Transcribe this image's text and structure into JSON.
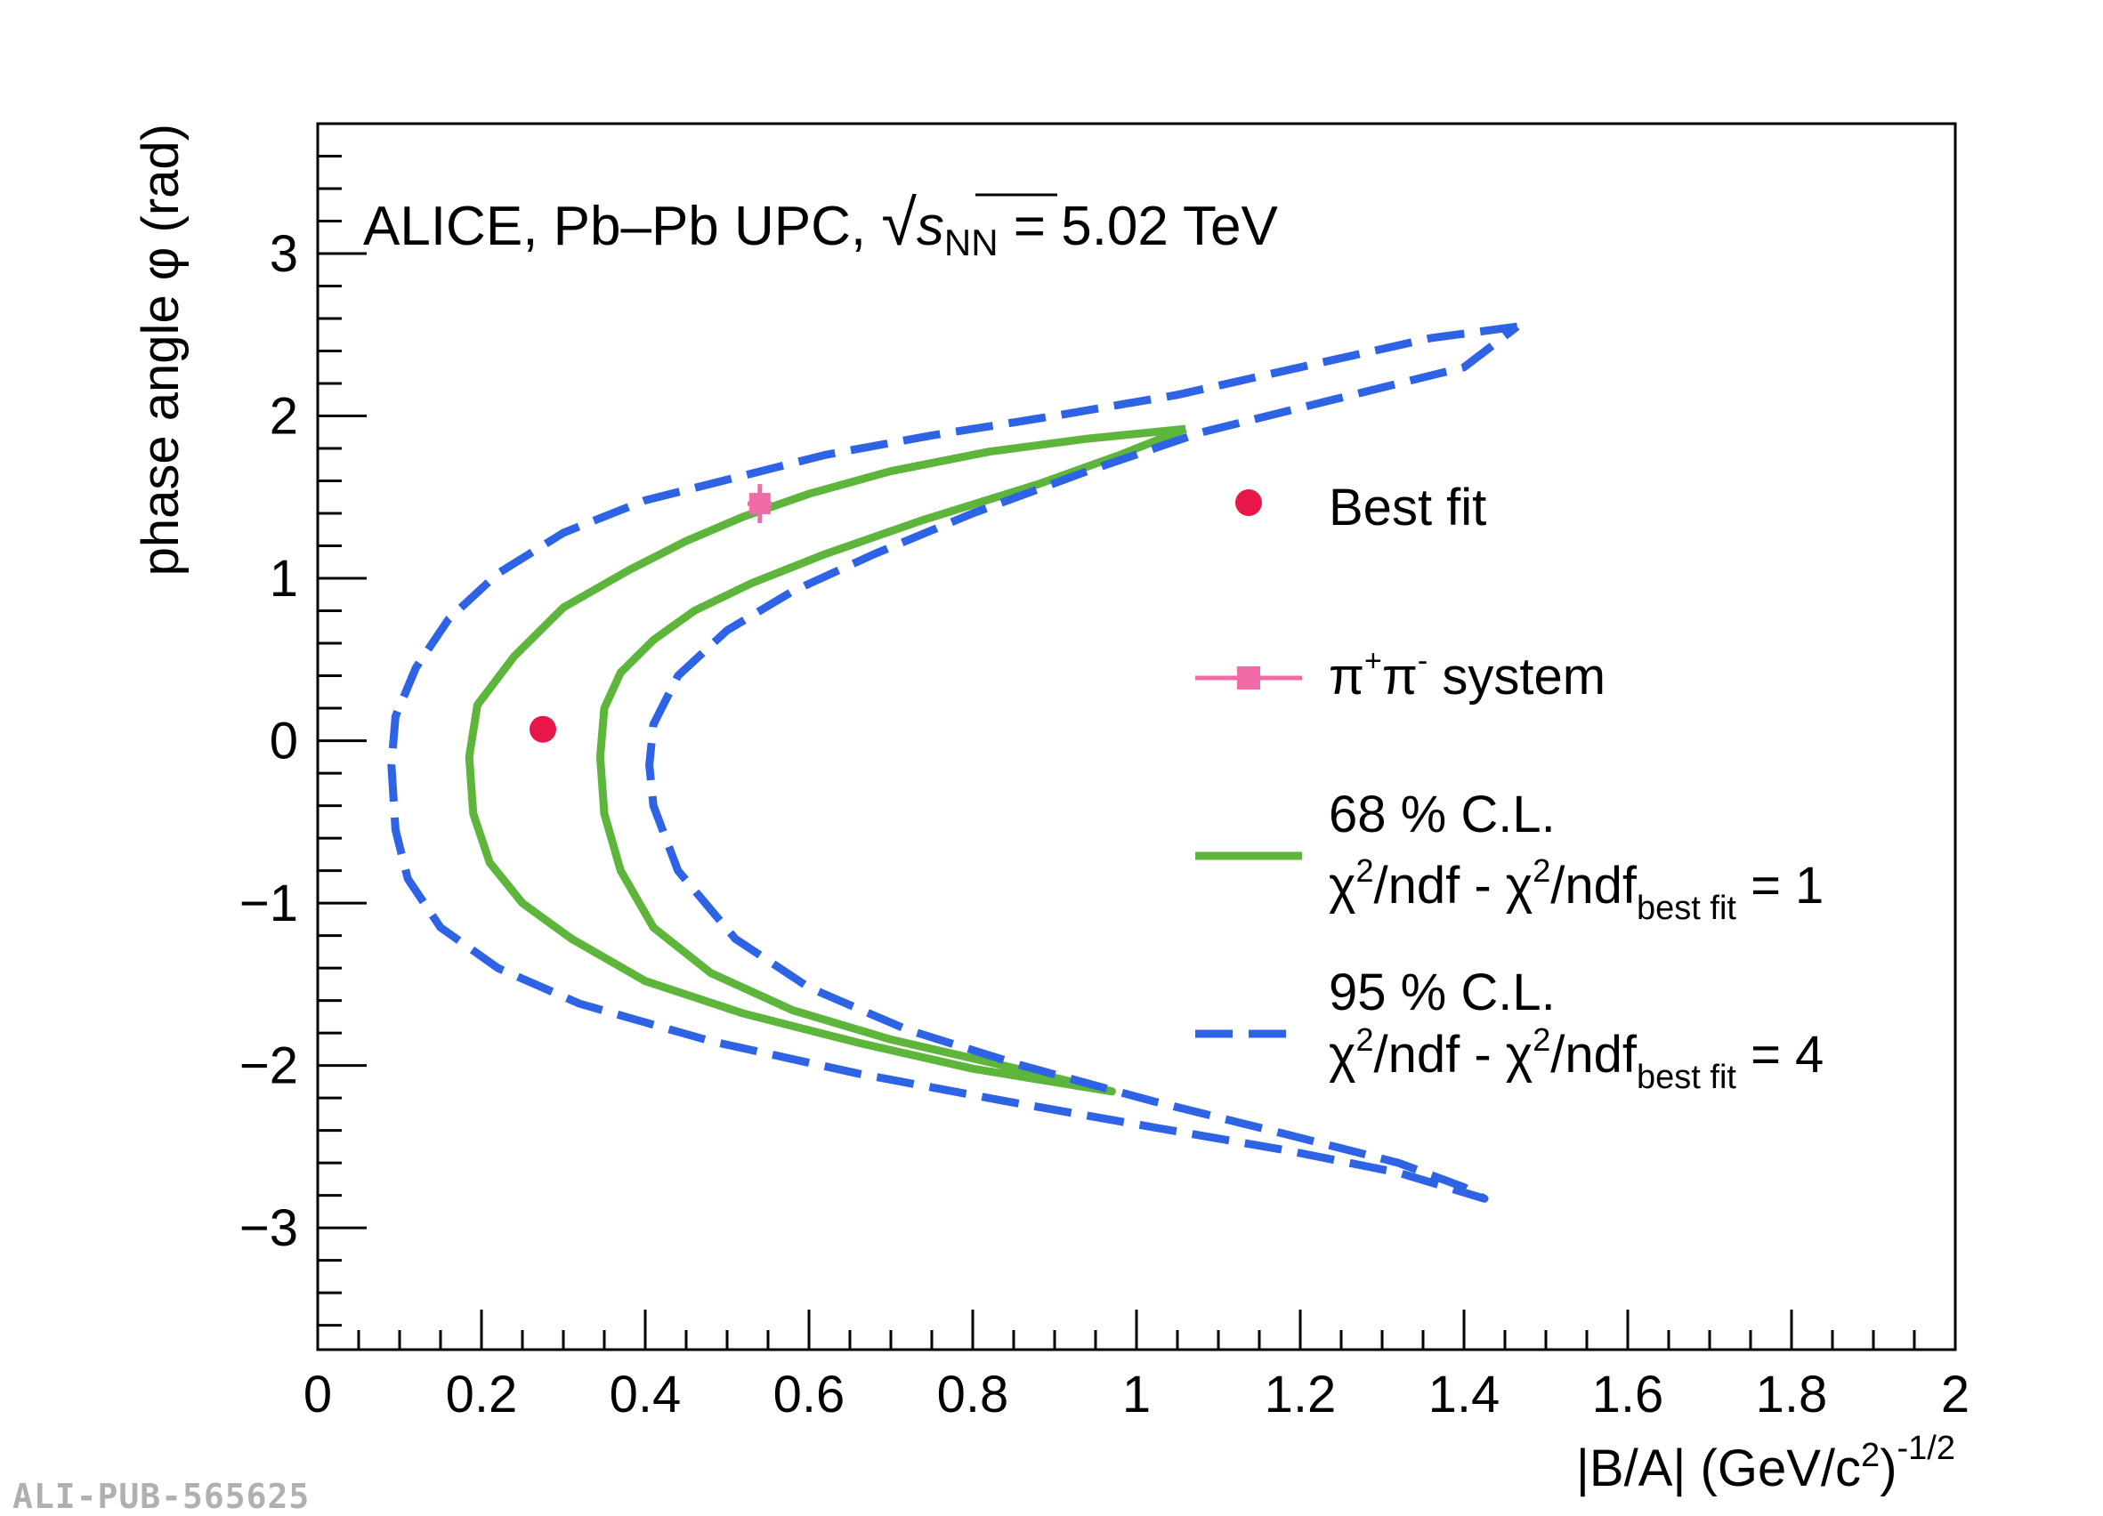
{
  "chart_data": {
    "type": "line",
    "annotation": {
      "prefix": "ALICE, Pb–Pb UPC, ",
      "sqrt_symbol": "√",
      "s": "s",
      "sub": "NN",
      "suffix": " = 5.02 TeV"
    },
    "xlabel": {
      "main": "|B/A| (GeV/c",
      "sup2": "2",
      "close": ")",
      "sup": "-1/2"
    },
    "ylabel": "phase angle φ (rad)",
    "xlim": [
      0,
      2
    ],
    "ylim": [
      -3.75,
      3.8
    ],
    "x_ticks": [
      0,
      0.2,
      0.4,
      0.6,
      0.8,
      1,
      1.2,
      1.4,
      1.6,
      1.8,
      2
    ],
    "x_tick_labels": [
      "0",
      "0.2",
      "0.4",
      "0.6",
      "0.8",
      "1",
      "1.2",
      "1.4",
      "1.6",
      "1.8",
      "2"
    ],
    "y_ticks": [
      -3,
      -2,
      -1,
      0,
      1,
      2,
      3
    ],
    "y_tick_labels": [
      "−3",
      "−2",
      "−1",
      "0",
      "1",
      "2",
      "3"
    ],
    "colors": {
      "best_fit": "#e8174a",
      "pipi": "#f06aa8",
      "cl68": "#5db53c",
      "cl95": "#2f63e6"
    },
    "series": [
      {
        "name": "Best fit",
        "kind": "point",
        "points": [
          [
            0.275,
            0.07
          ]
        ]
      },
      {
        "name": "π⁺π⁻ system",
        "kind": "point_with_errors",
        "points": [
          [
            0.54,
            1.46
          ]
        ],
        "xerr": 0.015,
        "yerr": 0.12
      },
      {
        "name": "68 % C.L. χ²/ndf - χ²/ndf best fit = 1",
        "kind": "contour",
        "style": "solid",
        "points": [
          [
            1.06,
            1.92
          ],
          [
            0.94,
            1.86
          ],
          [
            0.82,
            1.78
          ],
          [
            0.7,
            1.66
          ],
          [
            0.6,
            1.52
          ],
          [
            0.52,
            1.38
          ],
          [
            0.45,
            1.23
          ],
          [
            0.38,
            1.05
          ],
          [
            0.3,
            0.82
          ],
          [
            0.24,
            0.52
          ],
          [
            0.195,
            0.22
          ],
          [
            0.185,
            -0.1
          ],
          [
            0.19,
            -0.45
          ],
          [
            0.21,
            -0.75
          ],
          [
            0.25,
            -1.0
          ],
          [
            0.31,
            -1.22
          ],
          [
            0.4,
            -1.48
          ],
          [
            0.52,
            -1.68
          ],
          [
            0.66,
            -1.86
          ],
          [
            0.8,
            -2.02
          ],
          [
            0.97,
            -2.16
          ],
          [
            0.92,
            -2.1
          ],
          [
            0.82,
            -1.98
          ],
          [
            0.7,
            -1.84
          ],
          [
            0.58,
            -1.66
          ],
          [
            0.48,
            -1.43
          ],
          [
            0.41,
            -1.15
          ],
          [
            0.37,
            -0.8
          ],
          [
            0.35,
            -0.45
          ],
          [
            0.345,
            -0.1
          ],
          [
            0.35,
            0.2
          ],
          [
            0.37,
            0.42
          ],
          [
            0.41,
            0.62
          ],
          [
            0.46,
            0.8
          ],
          [
            0.53,
            0.97
          ],
          [
            0.62,
            1.15
          ],
          [
            0.74,
            1.36
          ],
          [
            0.88,
            1.58
          ],
          [
            0.98,
            1.76
          ],
          [
            1.06,
            1.92
          ]
        ]
      },
      {
        "name": "95 % C.L. χ²/ndf - χ²/ndf best fit = 4",
        "kind": "contour",
        "style": "dashed",
        "points": [
          [
            1.465,
            2.55
          ],
          [
            1.36,
            2.48
          ],
          [
            1.2,
            2.3
          ],
          [
            1.05,
            2.13
          ],
          [
            0.9,
            2.0
          ],
          [
            0.75,
            1.88
          ],
          [
            0.62,
            1.76
          ],
          [
            0.51,
            1.62
          ],
          [
            0.4,
            1.48
          ],
          [
            0.3,
            1.28
          ],
          [
            0.22,
            1.03
          ],
          [
            0.16,
            0.75
          ],
          [
            0.12,
            0.45
          ],
          [
            0.095,
            0.15
          ],
          [
            0.09,
            -0.15
          ],
          [
            0.095,
            -0.55
          ],
          [
            0.11,
            -0.85
          ],
          [
            0.15,
            -1.15
          ],
          [
            0.22,
            -1.4
          ],
          [
            0.32,
            -1.62
          ],
          [
            0.48,
            -1.85
          ],
          [
            0.66,
            -2.05
          ],
          [
            0.84,
            -2.22
          ],
          [
            1.02,
            -2.38
          ],
          [
            1.18,
            -2.52
          ],
          [
            1.32,
            -2.66
          ],
          [
            1.425,
            -2.82
          ],
          [
            1.4,
            -2.75
          ],
          [
            1.32,
            -2.6
          ],
          [
            1.18,
            -2.42
          ],
          [
            1.02,
            -2.22
          ],
          [
            0.86,
            -2.0
          ],
          [
            0.72,
            -1.78
          ],
          [
            0.6,
            -1.52
          ],
          [
            0.51,
            -1.22
          ],
          [
            0.44,
            -0.8
          ],
          [
            0.41,
            -0.4
          ],
          [
            0.405,
            -0.15
          ],
          [
            0.41,
            0.1
          ],
          [
            0.44,
            0.4
          ],
          [
            0.5,
            0.68
          ],
          [
            0.58,
            0.92
          ],
          [
            0.68,
            1.15
          ],
          [
            0.8,
            1.4
          ],
          [
            0.94,
            1.66
          ],
          [
            1.08,
            1.9
          ],
          [
            1.24,
            2.1
          ],
          [
            1.4,
            2.3
          ],
          [
            1.465,
            2.55
          ]
        ]
      }
    ],
    "legend": {
      "position": "right",
      "entries": [
        {
          "id": "best",
          "lines": [
            "Best fit"
          ]
        },
        {
          "id": "pipi",
          "pi": "π",
          "plus": "+",
          "minus": "-",
          "rest": " system"
        },
        {
          "id": "cl68",
          "line1": "68 % C.L.",
          "chi": "χ",
          "sup": "2",
          "mid": "/ndf - χ",
          "sup2": "2",
          "ndf": "/ndf",
          "sub": "best fit",
          "eq": " = 1"
        },
        {
          "id": "cl95",
          "line1": "95 % C.L.",
          "chi": "χ",
          "sup": "2",
          "mid": "/ndf - χ",
          "sup2": "2",
          "ndf": "/ndf",
          "sub": "best fit",
          "eq": " = 4"
        }
      ]
    }
  },
  "footer": {
    "pub_id": "ALI-PUB-565625"
  }
}
